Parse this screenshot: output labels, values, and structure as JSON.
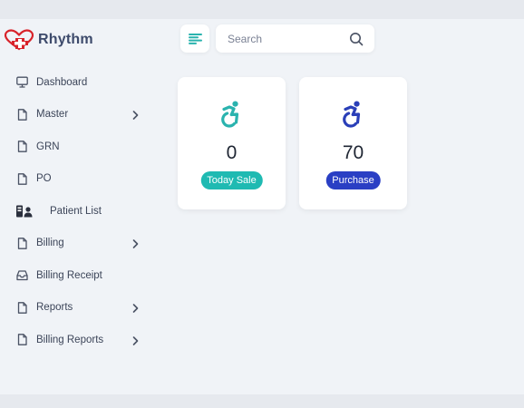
{
  "app": {
    "name": "Rhythm"
  },
  "header": {
    "search": {
      "placeholder": "Search",
      "value": ""
    }
  },
  "sidebar": {
    "items": [
      {
        "label": "Dashboard",
        "icon": "monitor-icon",
        "has_submenu": false
      },
      {
        "label": "Master",
        "icon": "file-icon",
        "has_submenu": true
      },
      {
        "label": "GRN",
        "icon": "file-icon",
        "has_submenu": false
      },
      {
        "label": "PO",
        "icon": "file-icon",
        "has_submenu": false
      },
      {
        "label": "Patient List",
        "icon": "patient-list-icon",
        "has_submenu": false
      },
      {
        "label": "Billing",
        "icon": "file-icon",
        "has_submenu": true
      },
      {
        "label": "Billing Receipt",
        "icon": "inbox-icon",
        "has_submenu": false
      },
      {
        "label": "Reports",
        "icon": "file-icon",
        "has_submenu": true
      },
      {
        "label": "Billing Reports",
        "icon": "file-icon",
        "has_submenu": true
      }
    ]
  },
  "cards": [
    {
      "value": "0",
      "label": "Today Sale",
      "icon": "accessible-icon",
      "icon_color": "#2ab3ae",
      "badge_color": "#1fbab2"
    },
    {
      "value": "70",
      "label": "Purchase",
      "icon": "accessible-icon",
      "icon_color": "#2a3fb8",
      "badge_color": "#2a3fc4"
    }
  ],
  "colors": {
    "background": "#f0f3f7",
    "logo_red": "#d8232a",
    "text": "#3b4458",
    "menu_icon": "#2ab3ae"
  }
}
